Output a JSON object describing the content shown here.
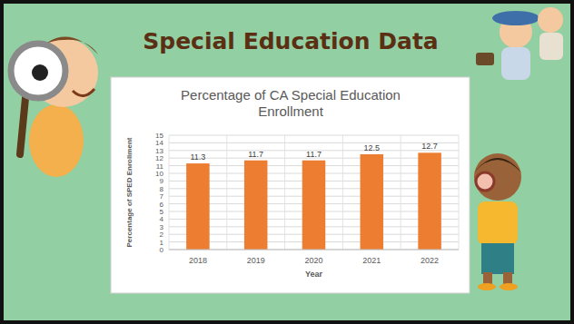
{
  "heading": "Special Education Data",
  "chart_data": {
    "type": "bar",
    "title": "Percentage of CA Special Education Enrollment",
    "x_label": "Year",
    "y_label": "Percentage of SPED Enrollment",
    "categories": [
      "2018",
      "2019",
      "2020",
      "2021",
      "2022"
    ],
    "values": [
      11.3,
      11.7,
      11.7,
      12.5,
      12.7
    ],
    "color": "#ed7d31",
    "ylim": [
      0,
      15
    ],
    "yticks": [
      0,
      1,
      2,
      3,
      4,
      5,
      6,
      7,
      8,
      9,
      10,
      11,
      12,
      13,
      14,
      15
    ],
    "grid": true,
    "data_labels": true
  }
}
